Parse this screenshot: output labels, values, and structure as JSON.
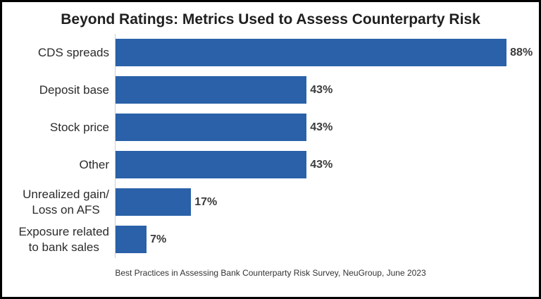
{
  "chart_data": {
    "type": "bar",
    "orientation": "horizontal",
    "title": "Beyond Ratings: Metrics Used to Assess Counterparty Risk",
    "categories": [
      "CDS spreads",
      "Deposit base",
      "Stock price",
      "Other",
      "Unrealized gain/\nLoss on AFS",
      "Exposure related\nto bank sales"
    ],
    "values": [
      88,
      43,
      43,
      43,
      17,
      7
    ],
    "value_labels": [
      "88%",
      "43%",
      "43%",
      "43%",
      "17%",
      "7%"
    ],
    "unit": "%",
    "xlim": [
      0,
      94
    ],
    "grid": "off",
    "legend": "none",
    "bar_color": "#2a61a9",
    "axis_line_color": "#cfcfcf",
    "source_note": "Best Practices in Assessing Bank Counterparty Risk Survey, NeuGroup, June 2023"
  }
}
